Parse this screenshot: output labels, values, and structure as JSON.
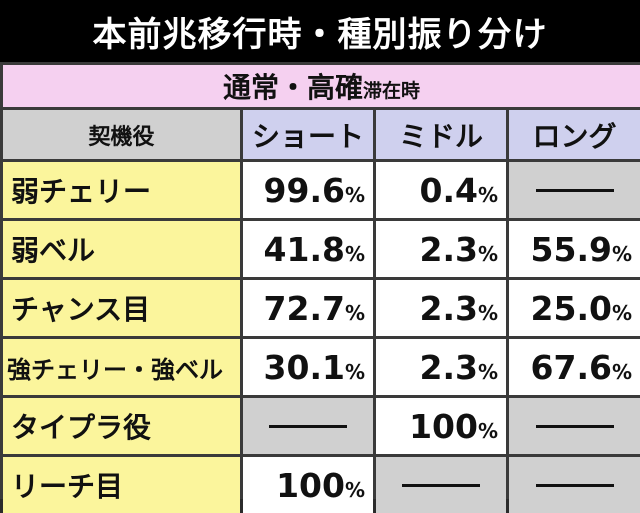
{
  "header": {
    "title": "本前兆移行時・種別振り分け"
  },
  "subtitle": {
    "main": "通常・高確",
    "small": "滞在時"
  },
  "table": {
    "columns": [
      "契機役",
      "ショート",
      "ミドル",
      "ロング"
    ],
    "rows": [
      [
        "弱チェリー",
        "99.6%",
        "0.4%",
        null
      ],
      [
        "弱ベル",
        "41.8%",
        "2.3%",
        "55.9%"
      ],
      [
        "チャンス目",
        "72.7%",
        "2.3%",
        "25.0%"
      ],
      [
        "強チェリー・強ベル",
        "30.1%",
        "2.3%",
        "67.6%"
      ],
      [
        "タイプラ役",
        null,
        "100%",
        null
      ],
      [
        "リーチ目",
        "100%",
        null,
        null
      ]
    ]
  }
}
